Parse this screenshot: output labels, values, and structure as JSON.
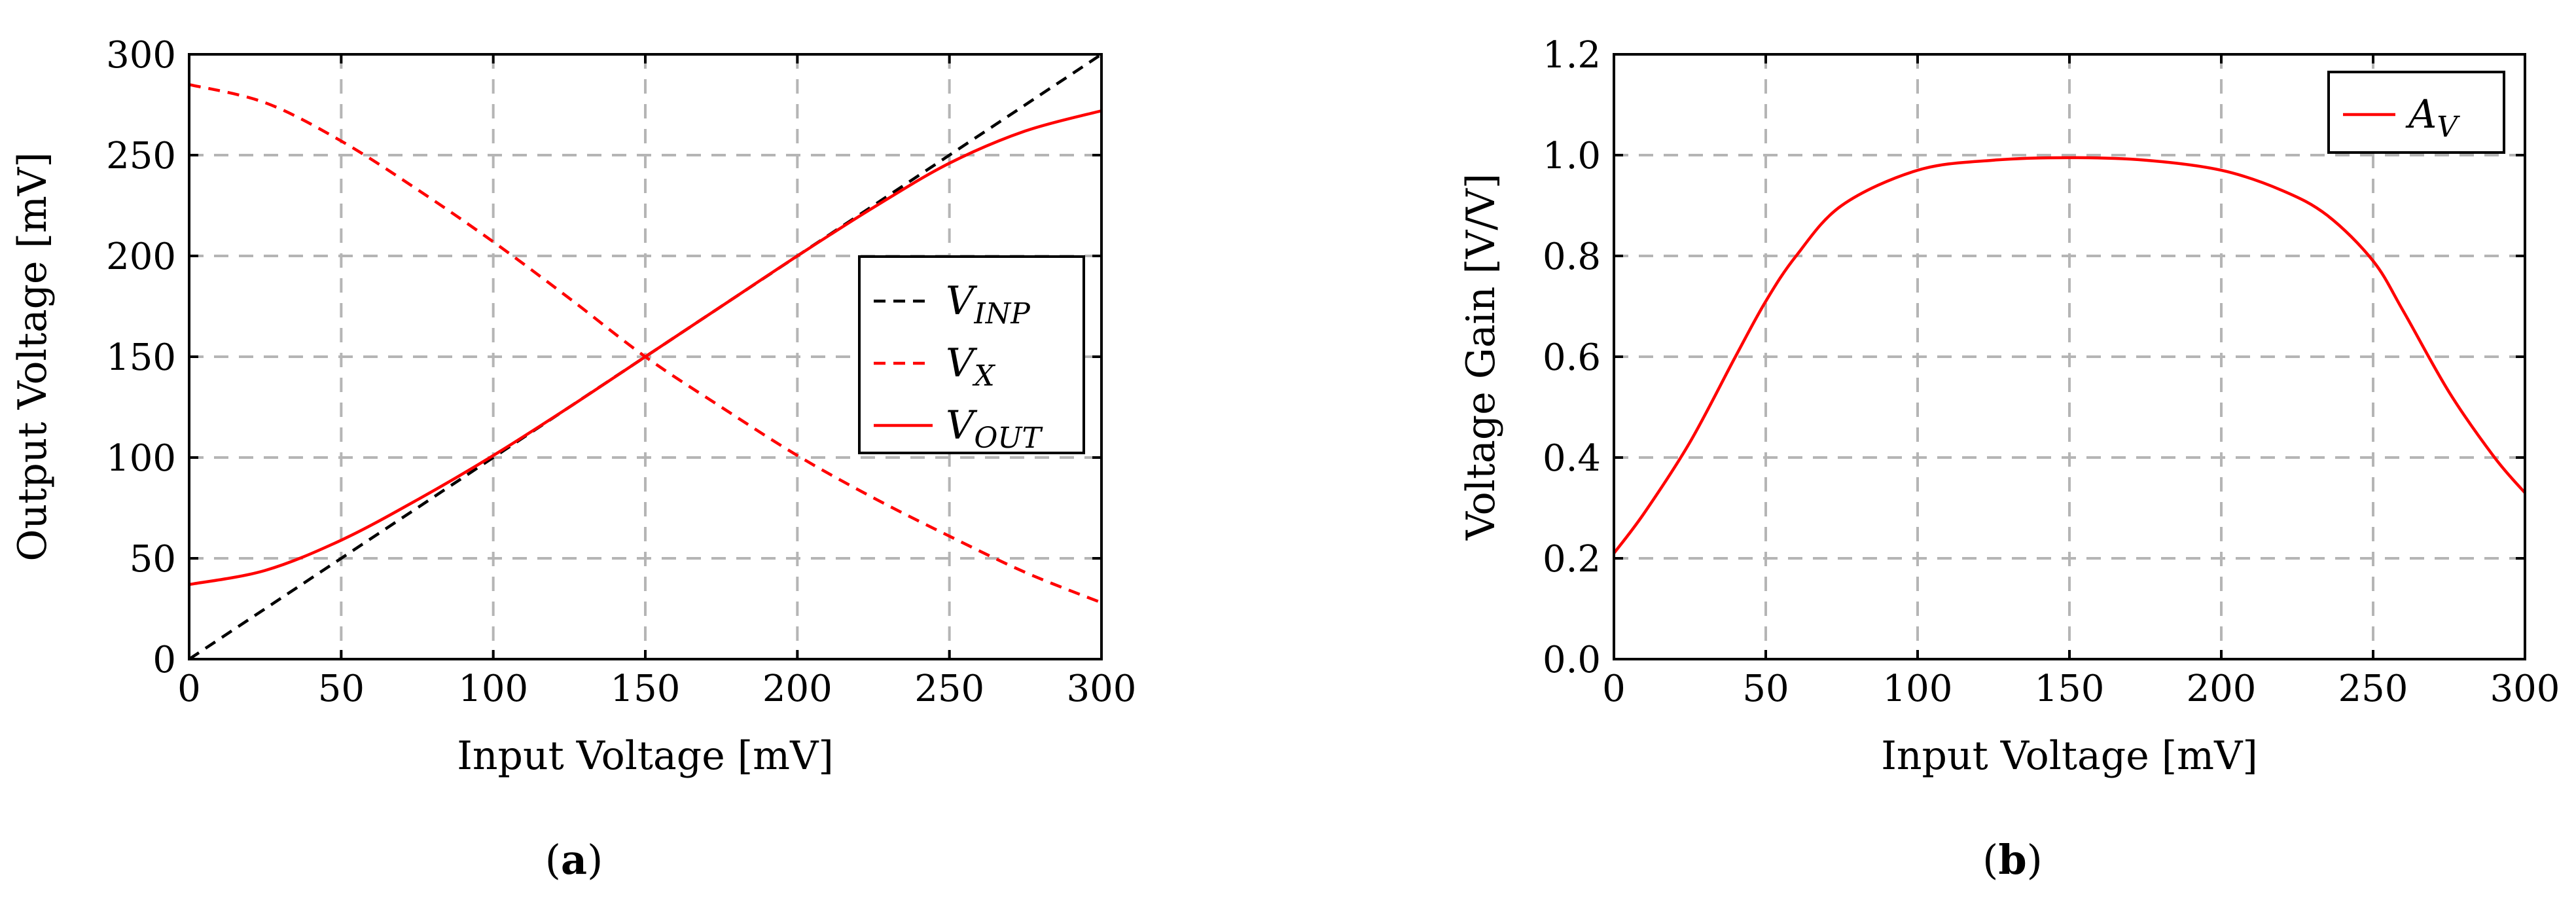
{
  "chart_data": [
    {
      "type": "line",
      "panel_label": "a",
      "title": "",
      "xlabel": "Input Voltage [mV]",
      "ylabel": "Output Voltage [mV]",
      "xlim": [
        0,
        300
      ],
      "ylim": [
        0,
        300
      ],
      "xticks": [
        0,
        50,
        100,
        150,
        200,
        250,
        300
      ],
      "yticks": [
        0,
        50,
        100,
        150,
        200,
        250,
        300
      ],
      "xtick_labels": [
        "0",
        "50",
        "100",
        "150",
        "200",
        "250",
        "300"
      ],
      "ytick_labels": [
        "0",
        "50",
        "100",
        "150",
        "200",
        "250",
        "300"
      ],
      "grid": true,
      "legend_position": "center-right",
      "x": [
        0,
        25,
        50,
        75,
        100,
        125,
        150,
        175,
        200,
        225,
        250,
        275,
        300
      ],
      "series": [
        {
          "name": "V_INP",
          "base": "V",
          "sub": "INP",
          "color": "#000000",
          "dashed": true,
          "values": [
            0,
            25,
            50,
            75,
            100,
            125,
            150,
            175,
            200,
            225,
            250,
            275,
            300
          ]
        },
        {
          "name": "V_X",
          "base": "V",
          "sub": "X",
          "color": "#ff0000",
          "dashed": true,
          "values": [
            285,
            276,
            257,
            233,
            207,
            179,
            150,
            125,
            101,
            80,
            61,
            43,
            28
          ]
        },
        {
          "name": "V_OUT",
          "base": "V",
          "sub": "OUT",
          "color": "#ff0000",
          "dashed": false,
          "values": [
            37,
            44,
            59,
            79,
            101,
            125,
            150,
            175,
            200,
            224,
            246,
            262,
            272
          ]
        }
      ]
    },
    {
      "type": "line",
      "panel_label": "b",
      "title": "",
      "xlabel": "Input Voltage [mV]",
      "ylabel": "Voltage Gain [V/V]",
      "xlim": [
        0,
        300
      ],
      "ylim": [
        0,
        1.2
      ],
      "xticks": [
        0,
        50,
        100,
        150,
        200,
        250,
        300
      ],
      "yticks": [
        0,
        0.2,
        0.4,
        0.6,
        0.8,
        1.0,
        1.2
      ],
      "xtick_labels": [
        "0",
        "50",
        "100",
        "150",
        "200",
        "250",
        "300"
      ],
      "ytick_labels": [
        "0.0",
        "0.2",
        "0.4",
        "0.6",
        "0.8",
        "1.0",
        "1.2"
      ],
      "grid": true,
      "legend_position": "top-right",
      "x": [
        0,
        10,
        25,
        40,
        50,
        60,
        75,
        100,
        125,
        150,
        175,
        200,
        220,
        235,
        250,
        260,
        275,
        290,
        300
      ],
      "series": [
        {
          "name": "A_V",
          "base": "A",
          "sub": "V",
          "color": "#ff0000",
          "dashed": false,
          "values": [
            0.21,
            0.29,
            0.43,
            0.6,
            0.71,
            0.8,
            0.9,
            0.97,
            0.99,
            0.995,
            0.99,
            0.97,
            0.93,
            0.88,
            0.79,
            0.69,
            0.53,
            0.4,
            0.33
          ]
        }
      ]
    }
  ]
}
